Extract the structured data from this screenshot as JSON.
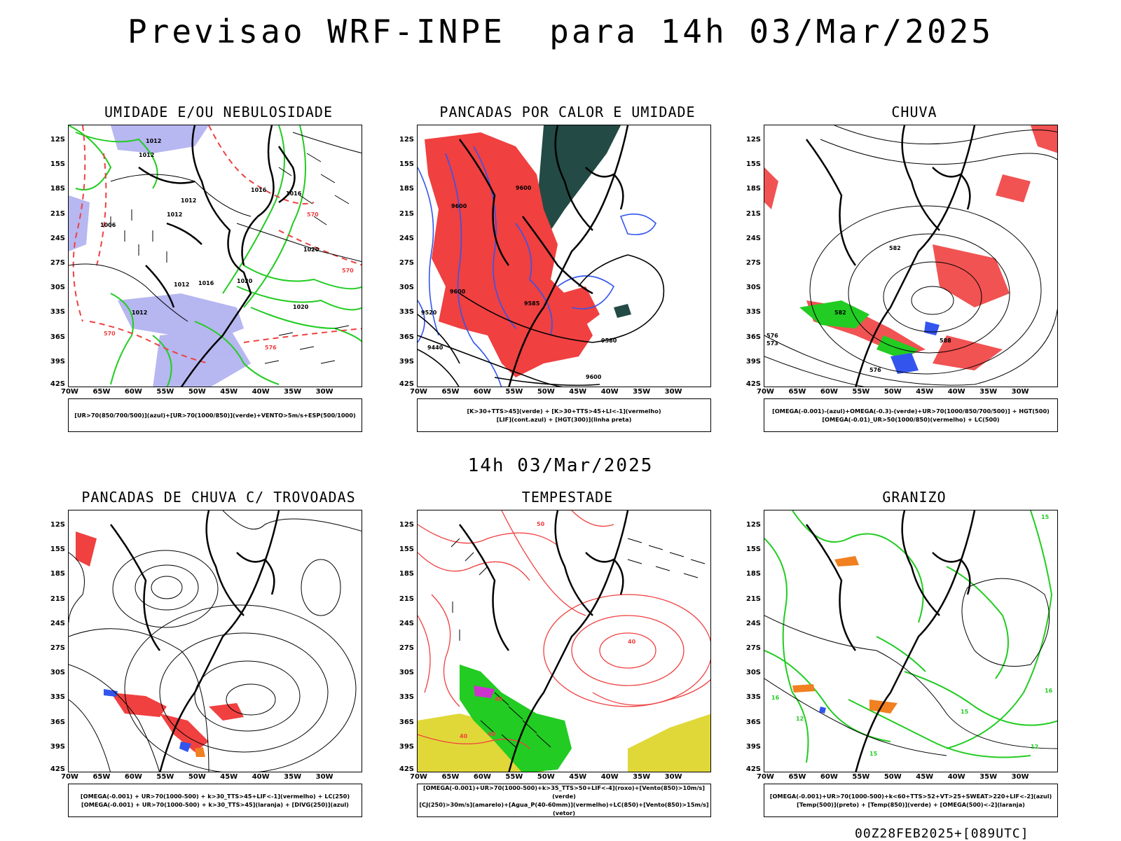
{
  "title": "Previsao WRF-INPE  para 14h 03/Mar/2025",
  "subtitle": "14h 03/Mar/2025",
  "footer": "00Z28FEB2025+[089UTC]",
  "axes": {
    "lat_labels": [
      "12S",
      "15S",
      "18S",
      "21S",
      "24S",
      "27S",
      "30S",
      "33S",
      "36S",
      "39S",
      "42S"
    ],
    "lon_labels": [
      "70W",
      "65W",
      "60W",
      "55W",
      "50W",
      "45W",
      "40W",
      "35W",
      "30W"
    ]
  },
  "colors": {
    "green": "#22cc22",
    "red": "#f04040",
    "blue": "#3355ee",
    "lavender": "#aaaaee",
    "darkgreen": "#234a44",
    "yellow": "#e0d838",
    "orange": "#f08020"
  },
  "panels": [
    {
      "title": "UMIDADE E/OU NEBULOSIDADE",
      "legend_lines": [
        "[UR>70(850/700/500)](azul)+[UR>70(1000/850)](verde)+VENTO>5m/s+ESP(500/1000)"
      ],
      "contour_labels": [
        "1012",
        "1012",
        "1012",
        "1012",
        "1016",
        "1016",
        "1020",
        "1020",
        "1020",
        "1012",
        "1016",
        "1012",
        "1006",
        "570",
        "570",
        "570",
        "576"
      ]
    },
    {
      "title": "PANCADAS POR CALOR E UMIDADE",
      "legend_lines": [
        "[K>30+TTS>45](verde) + [K>30+TTS>45+LI<-1](vermelho)",
        "[LIF](cont.azul) + [HGT(300)](linha preta)"
      ],
      "contour_labels": [
        "9600",
        "9600",
        "9600",
        "9520",
        "9440",
        "9580",
        "9600",
        "9585"
      ]
    },
    {
      "title": "CHUVA",
      "legend_lines": [
        "[OMEGA(-0.001)-(azul)+OMEGA(-0.3)-(verde)+UR>70(1000/850/700/500)] + HGT(500)",
        "[OMEGA(-0.01)_UR>50(1000/850)(vermelho) + LC(500)"
      ],
      "contour_labels": [
        "582",
        "582",
        "576",
        "573",
        "588",
        "576"
      ]
    },
    {
      "title": "PANCADAS DE CHUVA C/ TROVOADAS",
      "legend_lines": [
        "[OMEGA(-0.001) + UR>70(1000-500) + k>30_TTS>45+LIF<-1](vermelho) + LC(250)",
        "[OMEGA(-0.001) + UR>70(1000-500) + k>30_TTS>45](laranja) + [DIVG(250)](azul)"
      ],
      "contour_labels": []
    },
    {
      "title": "TEMPESTADE",
      "legend_lines": [
        "[OMEGA(-0.001)+UR>70(1000-500)+k>35_TTS>50+LIF<-4](roxo)+[Vento(850)>10m/s](verde)",
        "[CJ(250)>30m/s](amarelo)+[Agua_P(40-60mm)](vermelho)+LC(850)+[Vento(850)>15m/s](vetor)"
      ],
      "contour_labels": [
        "50",
        "40",
        "40",
        "40",
        "40"
      ]
    },
    {
      "title": "GRANIZO",
      "legend_lines": [
        "[OMEGA(-0.001)+UR>70(1000-500)+k<60+TTS>52+VT>25+SWEAT>220+LIF<-2](azul)",
        "[Temp(500)](preto) + [Temp(850)](verde) + [OMEGA(500)<-2](laranja)"
      ],
      "contour_labels": [
        "15",
        "16",
        "12",
        "12",
        "15",
        "16",
        "15"
      ]
    }
  ]
}
